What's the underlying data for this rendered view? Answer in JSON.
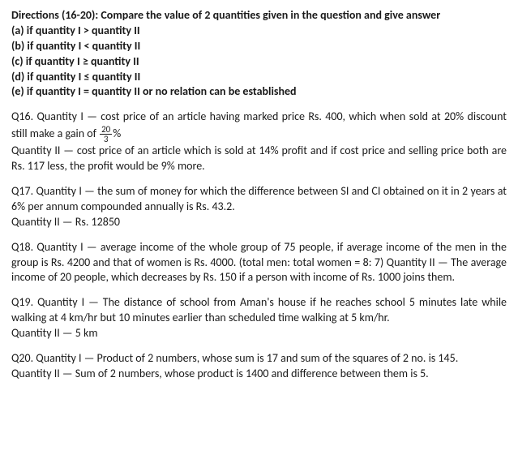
{
  "directions": {
    "title": "Directions (16-20): Compare the value of 2 quantities given in the question and give answer",
    "opts": {
      "a": "(a) if quantity I > quantity II",
      "b": "(b) if quantity I < quantity II",
      "c": "(c) if quantity I ≥ quantity II",
      "d": "(d) if quantity I ≤ quantity II",
      "e": "(e) if quantity I = quantity II or no relation can be established"
    }
  },
  "q16": {
    "line1a": "Q16. Quantity I — cost price of an article having marked price Rs. 400, which when sold at 20% discount still make a gain of ",
    "frac_num": "20",
    "frac_den": "3",
    "line1b": "%",
    "line2": "Quantity II — cost price of an article which is sold at 14% profit and if cost price and selling price both are Rs. 117 less, the profit would be 9% more."
  },
  "q17": {
    "line1": "Q17. Quantity I — the sum of money for which the difference between SI and CI obtained on it in 2 years at 6% per annum compounded annually is Rs. 43.2.",
    "line2": "Quantity II — Rs. 12850"
  },
  "q18": {
    "line1": "Q18. Quantity I — average income of the whole group of 75 people, if average income of the men in the group is Rs. 4200 and that of women is Rs. 4000. (total men: total women = 8: 7) Quantity II — The average income of 20 people, which decreases by Rs. 150 if a person with income of Rs. 1000 joins them."
  },
  "q19": {
    "line1": "Q19. Quantity I — The distance of school from Aman's house if he reaches school 5 minutes late while walking at 4 km/hr but 10 minutes earlier than scheduled time walking at 5 km/hr.",
    "line2": "Quantity II — 5 km"
  },
  "q20": {
    "line1": "Q20. Quantity I — Product of 2 numbers, whose sum is 17 and sum of the squares of 2 no. is 145.",
    "line2": "Quantity II — Sum of 2 numbers, whose product is 1400 and difference between them is 5."
  }
}
